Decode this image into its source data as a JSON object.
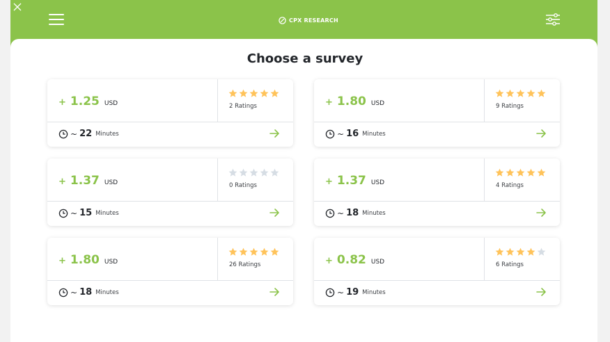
{
  "header": {
    "brand": "CPX RESEARCH"
  },
  "main": {
    "title": "Choose a survey"
  },
  "colors": {
    "accent": "#8bc34a",
    "star_filled": "#ffc35a",
    "star_empty": "#d6dde4"
  },
  "icons": {
    "close": "close-icon",
    "menu": "hamburger-menu-icon",
    "filter": "filter-sliders-icon",
    "clock": "clock-icon",
    "arrow": "arrow-right-icon",
    "star": "star-icon",
    "brand": "cpx-logo-icon"
  },
  "surveys": [
    {
      "amount": "1.25",
      "currency": "USD",
      "stars": 5,
      "ratings": "2 Ratings",
      "minutes": "22",
      "minutes_label": "Minutes"
    },
    {
      "amount": "1.80",
      "currency": "USD",
      "stars": 5,
      "ratings": "9 Ratings",
      "minutes": "16",
      "minutes_label": "Minutes"
    },
    {
      "amount": "1.37",
      "currency": "USD",
      "stars": 0,
      "ratings": "0 Ratings",
      "minutes": "15",
      "minutes_label": "Minutes"
    },
    {
      "amount": "1.37",
      "currency": "USD",
      "stars": 5,
      "ratings": "4 Ratings",
      "minutes": "18",
      "minutes_label": "Minutes"
    },
    {
      "amount": "1.80",
      "currency": "USD",
      "stars": 5,
      "ratings": "26 Ratings",
      "minutes": "18",
      "minutes_label": "Minutes"
    },
    {
      "amount": "0.82",
      "currency": "USD",
      "stars": 4,
      "ratings": "6 Ratings",
      "minutes": "19",
      "minutes_label": "Minutes"
    }
  ]
}
